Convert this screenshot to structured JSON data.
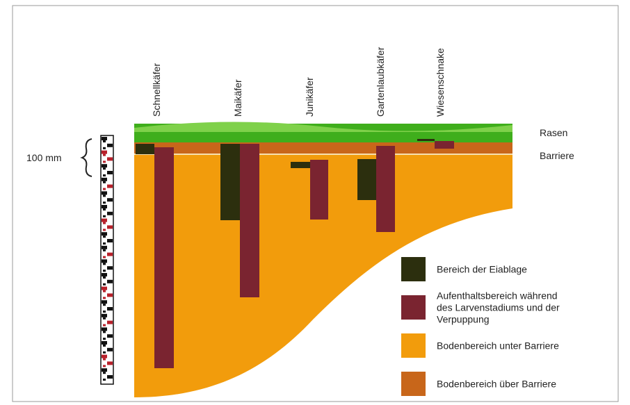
{
  "species": [
    "Schnellkäfer",
    "Maikäfer",
    "Junikäfer",
    "Gartenlaubkäfer",
    "Wiesenschnake"
  ],
  "layers": {
    "lawn": "Rasen",
    "barrier": "Barriere"
  },
  "scale_label": "100 mm",
  "legend": [
    {
      "lines": [
        "Bereich der Eiablage"
      ]
    },
    {
      "lines": [
        "Aufenthaltsbereich während",
        "des Larvenstadiums und der",
        "Verpuppung"
      ]
    },
    {
      "lines": [
        "Bodenbereich unter Barriere"
      ]
    },
    {
      "lines": [
        "Bodenbereich über Barriere"
      ]
    }
  ]
}
